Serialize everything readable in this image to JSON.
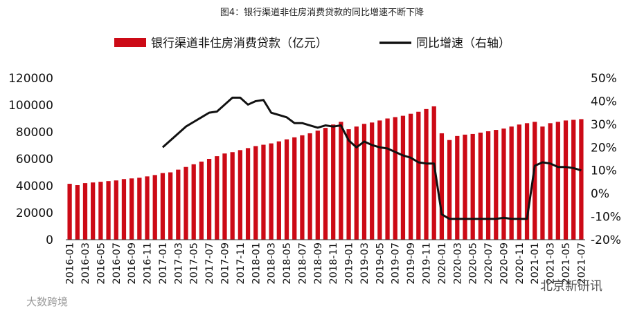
{
  "chart_data": {
    "type": "bar+line",
    "title": "图4：银行渠道非住房消费贷款的同比增速不断下降",
    "categories": [
      "2016-01",
      "2016-02",
      "2016-03",
      "2016-04",
      "2016-05",
      "2016-06",
      "2016-07",
      "2016-08",
      "2016-09",
      "2016-10",
      "2016-11",
      "2016-12",
      "2017-01",
      "2017-02",
      "2017-03",
      "2017-04",
      "2017-05",
      "2017-06",
      "2017-07",
      "2017-08",
      "2017-09",
      "2017-10",
      "2017-11",
      "2017-12",
      "2018-01",
      "2018-02",
      "2018-03",
      "2018-04",
      "2018-05",
      "2018-06",
      "2018-07",
      "2018-08",
      "2018-09",
      "2018-10",
      "2018-11",
      "2018-12",
      "2019-01",
      "2019-02",
      "2019-03",
      "2019-04",
      "2019-05",
      "2019-06",
      "2019-07",
      "2019-08",
      "2019-09",
      "2019-10",
      "2019-11",
      "2019-12",
      "2020-01",
      "2020-02",
      "2020-03",
      "2020-04",
      "2020-05",
      "2020-06",
      "2020-07",
      "2020-08",
      "2020-09",
      "2020-10",
      "2020-11",
      "2020-12",
      "2021-01",
      "2021-02",
      "2021-03",
      "2021-04",
      "2021-05",
      "2021-06",
      "2021-07"
    ],
    "xtick_labels": [
      "2016-01",
      "2016-03",
      "2016-05",
      "2016-07",
      "2016-09",
      "2016-11",
      "2017-01",
      "2017-03",
      "2017-05",
      "2017-07",
      "2017-09",
      "2017-11",
      "2018-01",
      "2018-03",
      "2018-05",
      "2018-07",
      "2018-09",
      "2018-11",
      "2019-01",
      "2019-03",
      "2019-05",
      "2019-07",
      "2019-09",
      "2019-11",
      "2020-01",
      "2020-03",
      "2020-05",
      "2020-07",
      "2020-09",
      "2020-11",
      "2021-01",
      "2021-03",
      "2021-05",
      "2021-07"
    ],
    "series": [
      {
        "name": "银行渠道非住房消费贷款（亿元）",
        "type": "bar",
        "axis": "left",
        "color": "#cc0a16",
        "values": [
          41500,
          40500,
          42000,
          42500,
          43000,
          43500,
          44000,
          45000,
          45500,
          46000,
          47000,
          48000,
          49500,
          50000,
          52000,
          54000,
          56000,
          58000,
          60000,
          62000,
          64000,
          65000,
          66500,
          68000,
          69500,
          70500,
          71500,
          73000,
          74500,
          76000,
          77500,
          79000,
          81000,
          83000,
          85500,
          87500,
          82000,
          84000,
          86000,
          87000,
          88500,
          90000,
          91000,
          92000,
          93500,
          95000,
          97000,
          99000,
          79000,
          74000,
          77000,
          78000,
          78500,
          79500,
          80500,
          81500,
          82500,
          84000,
          85500,
          86500,
          87500,
          84000,
          86500,
          87500,
          88500,
          89000,
          89500
        ]
      },
      {
        "name": "同比增速（右轴）",
        "type": "line",
        "axis": "right",
        "color": "#111111",
        "values": [
          null,
          null,
          null,
          null,
          null,
          null,
          null,
          null,
          null,
          null,
          null,
          null,
          20,
          23,
          26,
          29,
          31,
          33,
          35,
          35.5,
          38.5,
          41.5,
          41.5,
          38.5,
          40,
          40.5,
          35,
          34,
          33,
          30.5,
          30.5,
          29.5,
          28.5,
          29.5,
          29,
          29.5,
          23,
          20,
          22.5,
          21,
          20,
          19.5,
          18,
          16.5,
          15.5,
          13.5,
          13,
          13,
          -9,
          -11,
          -11,
          -11,
          -11,
          -11,
          -11,
          -11,
          -10.5,
          -11,
          -11,
          -11,
          12,
          13.5,
          13,
          11.5,
          11.5,
          11,
          10
        ]
      }
    ],
    "y_left": {
      "min": 0,
      "max": 120000,
      "ticks": [
        "0",
        "20000",
        "40000",
        "60000",
        "80000",
        "100000",
        "120000"
      ]
    },
    "y_right": {
      "min": -20,
      "max": 50,
      "ticks": [
        "-20%",
        "-10%",
        "0%",
        "10%",
        "20%",
        "30%",
        "40%",
        "50%"
      ]
    },
    "legend": {
      "placement": "top-center",
      "bar_label": "银行渠道非住房消费贷款（亿元）",
      "line_label": "同比增速（右轴）"
    },
    "grid": false
  },
  "watermarks": {
    "left": "大数跨境",
    "right": "北京新研讯"
  }
}
